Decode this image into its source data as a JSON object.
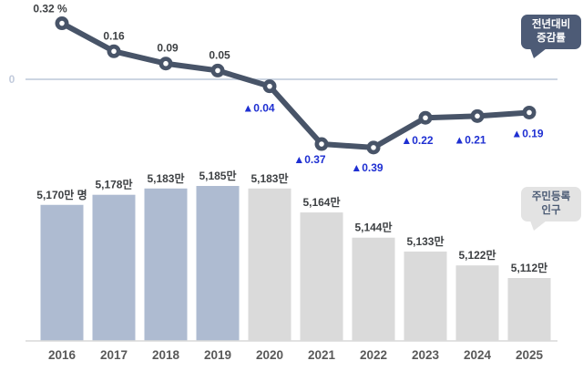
{
  "legend": {
    "rate_badge": {
      "line1": "전년대비",
      "line2": "증감률"
    },
    "population_badge": {
      "line1": "주민등록",
      "line2": "인구"
    }
  },
  "axis": {
    "zero_label": "0",
    "categories": [
      "2016",
      "2017",
      "2018",
      "2019",
      "2020",
      "2021",
      "2022",
      "2023",
      "2024",
      "2025"
    ]
  },
  "colors": {
    "line": "#485468",
    "marker_hole": "#ffffff",
    "positive_text": "#3d4043",
    "negative_text": "#1e2fd2",
    "bar_highlight": "#aebbd1",
    "bar_default": "#dadada",
    "bar_label": "#3d4043",
    "year_label": "#595959",
    "zero_line": "#ccd5e2",
    "zero_label": "#c2cbdc",
    "baseline": "#d9d9d9",
    "badge_dark_bg": "#4d5b76",
    "badge_dark_fg": "#ffffff",
    "badge_light_bg": "#e3e3e3",
    "badge_light_fg": "#4a5a74"
  },
  "chart_data": [
    {
      "type": "line",
      "name": "전년대비 증감률",
      "unit": "%",
      "negative_marker": "▲",
      "x": [
        "2016",
        "2017",
        "2018",
        "2019",
        "2020",
        "2021",
        "2022",
        "2023",
        "2024",
        "2025"
      ],
      "values": [
        0.32,
        0.16,
        0.09,
        0.05,
        -0.04,
        -0.37,
        -0.39,
        -0.22,
        -0.21,
        -0.19
      ],
      "labels": [
        "0.32 %",
        "0.16",
        "0.09",
        "0.05",
        "▲0.04",
        "▲0.37",
        "▲0.39",
        "▲0.22",
        "▲0.21",
        "▲0.19"
      ],
      "ylim": [
        -0.45,
        0.45
      ],
      "zero_line": true,
      "grid": false,
      "legend_position": "top-right"
    },
    {
      "type": "bar",
      "name": "주민등록 인구",
      "unit": "만 명",
      "categories": [
        "2016",
        "2017",
        "2018",
        "2019",
        "2020",
        "2021",
        "2022",
        "2023",
        "2024",
        "2025"
      ],
      "values": [
        5170,
        5178,
        5183,
        5185,
        5183,
        5164,
        5144,
        5133,
        5122,
        5112
      ],
      "labels": [
        "5,170만 명",
        "5,178만",
        "5,183만",
        "5,185만",
        "5,183만",
        "5,164만",
        "5,144만",
        "5,133만",
        "5,122만",
        "5,112만"
      ],
      "highlighted_categories": [
        "2016",
        "2017",
        "2018",
        "2019"
      ],
      "legend_position": "right"
    }
  ]
}
